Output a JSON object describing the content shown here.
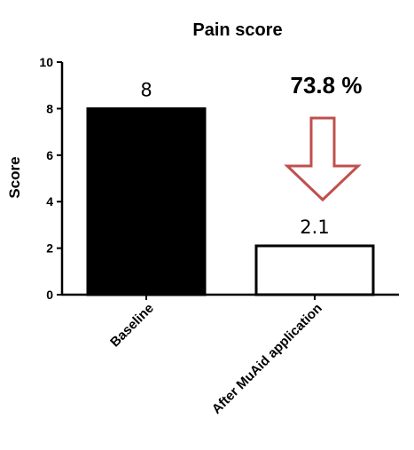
{
  "chart_data": {
    "type": "bar",
    "title": "Pain score",
    "ylabel": "Score",
    "xlabel": "",
    "ylim": [
      0,
      10
    ],
    "yticks": [
      0,
      2,
      4,
      6,
      8,
      10
    ],
    "categories": [
      "Baseline",
      "After MuAid application"
    ],
    "values": [
      8,
      2.1
    ],
    "data_labels": [
      "8",
      "2.1"
    ],
    "bar_fill": [
      "#000000",
      "#ffffff"
    ],
    "bar_stroke": "#000000",
    "annotation": {
      "text": "73.8 %",
      "arrow": "down",
      "arrow_color": "#c0504d"
    },
    "grid": false,
    "legend": "none"
  }
}
